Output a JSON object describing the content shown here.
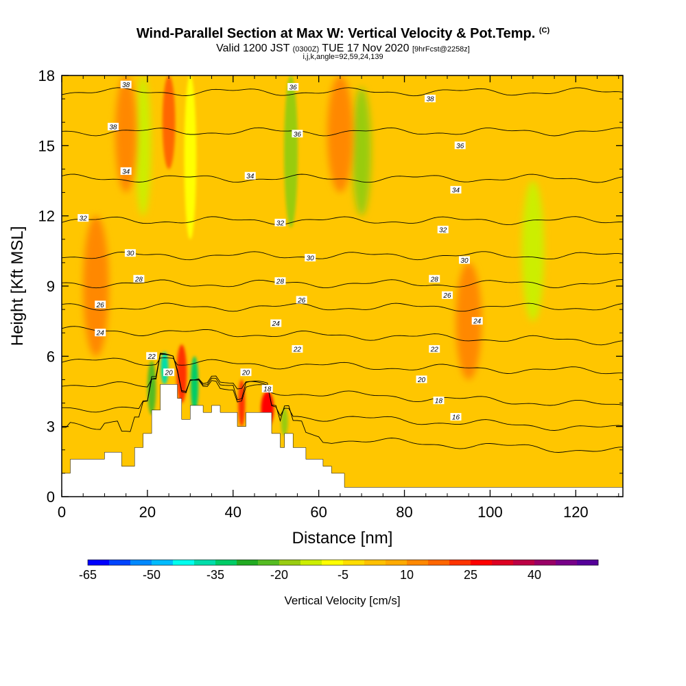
{
  "title": "Wind-Parallel Section at Max W: Vertical Velocity & Pot.Temp.",
  "title_mark": "(C)",
  "subtitle": {
    "valid": "Valid 1200 JST",
    "utc": "(0300Z)",
    "date": "TUE 17 Nov 2020",
    "forecast": "[9hrFcst@2258z]"
  },
  "indices": "i,j,k,angle=92,59,24,139",
  "chart_data": {
    "type": "heatmap",
    "xlabel": "Distance [nm]",
    "ylabel": "Height [Kft MSL]",
    "xlim": [
      0,
      131
    ],
    "ylim": [
      0,
      18
    ],
    "x_ticks": [
      "0",
      "20",
      "40",
      "60",
      "80",
      "100",
      "120"
    ],
    "y_ticks": [
      "0",
      "3",
      "6",
      "9",
      "12",
      "15",
      "18"
    ],
    "colorbar": {
      "label": "Vertical Velocity [cm/s]",
      "tick_labels": [
        "-65",
        "-50",
        "-35",
        "-20",
        "-5",
        "10",
        "25",
        "40"
      ],
      "colors": [
        "#0000ff",
        "#0044ff",
        "#0088ff",
        "#00bbff",
        "#00ffee",
        "#00ddaa",
        "#00cc66",
        "#22aa22",
        "#55bb22",
        "#99cc11",
        "#ccee00",
        "#ffff00",
        "#ffdd00",
        "#ffc000",
        "#ffaa00",
        "#ff8800",
        "#ff6600",
        "#ff3300",
        "#ff0000",
        "#dd0022",
        "#bb0044",
        "#990066",
        "#770088",
        "#550099"
      ]
    },
    "terrain": [
      [
        0,
        0
      ],
      [
        0,
        1
      ],
      [
        2,
        1
      ],
      [
        2,
        1.6
      ],
      [
        10,
        1.6
      ],
      [
        10,
        1.9
      ],
      [
        14,
        1.9
      ],
      [
        14,
        1.3
      ],
      [
        17,
        1.3
      ],
      [
        17,
        2.1
      ],
      [
        19,
        2.1
      ],
      [
        19,
        2.7
      ],
      [
        21,
        2.7
      ],
      [
        21,
        3.7
      ],
      [
        23,
        3.7
      ],
      [
        23,
        4.8
      ],
      [
        27,
        4.8
      ],
      [
        27,
        4.2
      ],
      [
        28,
        4.2
      ],
      [
        28,
        3.3
      ],
      [
        30,
        3.3
      ],
      [
        30,
        3.9
      ],
      [
        33,
        3.9
      ],
      [
        33,
        3.6
      ],
      [
        35,
        3.6
      ],
      [
        35,
        3.9
      ],
      [
        37,
        3.9
      ],
      [
        37,
        3.6
      ],
      [
        41,
        3.6
      ],
      [
        41,
        3
      ],
      [
        43,
        3
      ],
      [
        43,
        3.6
      ],
      [
        49,
        3.6
      ],
      [
        49,
        2.7
      ],
      [
        51,
        2.7
      ],
      [
        51,
        2.1
      ],
      [
        52,
        2.1
      ],
      [
        52,
        2.7
      ],
      [
        54,
        2.7
      ],
      [
        54,
        2.1
      ],
      [
        57,
        2.1
      ],
      [
        57,
        1.6
      ],
      [
        61,
        1.6
      ],
      [
        61,
        1.3
      ],
      [
        63,
        1.3
      ],
      [
        63,
        1
      ],
      [
        66,
        1
      ],
      [
        66,
        0.4
      ],
      [
        131,
        0.4
      ],
      [
        131,
        0
      ]
    ],
    "theta_contours": [
      {
        "label": "16",
        "y": 2.45
      },
      {
        "label": "18",
        "y": 3.4
      },
      {
        "label": "20",
        "y": 4.4
      },
      {
        "label": "22",
        "y": 5.6
      },
      {
        "label": "24",
        "y": 6.9
      },
      {
        "label": "26",
        "y": 8.1
      },
      {
        "label": "28",
        "y": 9.1
      },
      {
        "label": "30",
        "y": 10.3
      },
      {
        "label": "32",
        "y": 11.8
      },
      {
        "label": "34",
        "y": 13.6
      },
      {
        "label": "36",
        "y": 15.6
      },
      {
        "label": "38",
        "y": 17.3
      }
    ],
    "contour_labels": [
      {
        "label": "38",
        "x": 15,
        "y": 17.6
      },
      {
        "label": "36",
        "x": 54,
        "y": 17.5
      },
      {
        "label": "38",
        "x": 86,
        "y": 17.0
      },
      {
        "label": "38",
        "x": 12,
        "y": 15.8
      },
      {
        "label": "36",
        "x": 55,
        "y": 15.5
      },
      {
        "label": "36",
        "x": 93,
        "y": 15.0
      },
      {
        "label": "34",
        "x": 15,
        "y": 13.9
      },
      {
        "label": "34",
        "x": 44,
        "y": 13.7
      },
      {
        "label": "34",
        "x": 92,
        "y": 13.1
      },
      {
        "label": "32",
        "x": 5,
        "y": 11.9
      },
      {
        "label": "32",
        "x": 51,
        "y": 11.7
      },
      {
        "label": "32",
        "x": 89,
        "y": 11.4
      },
      {
        "label": "30",
        "x": 16,
        "y": 10.4
      },
      {
        "label": "30",
        "x": 58,
        "y": 10.2
      },
      {
        "label": "30",
        "x": 94,
        "y": 10.1
      },
      {
        "label": "28",
        "x": 18,
        "y": 9.3
      },
      {
        "label": "28",
        "x": 51,
        "y": 9.2
      },
      {
        "label": "28",
        "x": 87,
        "y": 9.3
      },
      {
        "label": "26",
        "x": 9,
        "y": 8.2
      },
      {
        "label": "26",
        "x": 56,
        "y": 8.4
      },
      {
        "label": "26",
        "x": 90,
        "y": 8.6
      },
      {
        "label": "24",
        "x": 9,
        "y": 7.0
      },
      {
        "label": "24",
        "x": 50,
        "y": 7.4
      },
      {
        "label": "24",
        "x": 97,
        "y": 7.5
      },
      {
        "label": "22",
        "x": 21,
        "y": 6.0
      },
      {
        "label": "22",
        "x": 55,
        "y": 6.3
      },
      {
        "label": "22",
        "x": 87,
        "y": 6.3
      },
      {
        "label": "20",
        "x": 25,
        "y": 5.3
      },
      {
        "label": "20",
        "x": 43,
        "y": 5.3
      },
      {
        "label": "20",
        "x": 84,
        "y": 5.0
      },
      {
        "label": "18",
        "x": 48,
        "y": 4.6
      },
      {
        "label": "18",
        "x": 88,
        "y": 4.1
      },
      {
        "label": "16",
        "x": 92,
        "y": 3.4
      }
    ],
    "velocity_features": [
      {
        "x": 19,
        "y0": 12,
        "y1": 18,
        "w": 1.8,
        "value": -15
      },
      {
        "x": 25,
        "y0": 14,
        "y1": 18,
        "w": 1.5,
        "value": 15
      },
      {
        "x": 30,
        "y0": 11,
        "y1": 18,
        "w": 1.4,
        "value": -10
      },
      {
        "x": 53.5,
        "y0": 11.5,
        "y1": 18,
        "w": 1.6,
        "value": -20
      },
      {
        "x": 70,
        "y0": 12,
        "y1": 17.5,
        "w": 2.2,
        "value": -17
      },
      {
        "x": 110,
        "y0": 7.5,
        "y1": 13.5,
        "w": 2.6,
        "value": -12
      },
      {
        "x": 15,
        "y0": 13,
        "y1": 18,
        "w": 2.5,
        "value": 12
      },
      {
        "x": 8,
        "y0": 6,
        "y1": 12,
        "w": 3,
        "value": 12
      },
      {
        "x": 95,
        "y0": 5,
        "y1": 10,
        "w": 3,
        "value": 14
      },
      {
        "x": 65,
        "y0": 13,
        "y1": 18,
        "w": 3,
        "value": 12
      },
      {
        "x": 48,
        "y0": 3,
        "y1": 4.5,
        "w": 1.5,
        "value": 25
      },
      {
        "x": 42,
        "y0": 3,
        "y1": 5,
        "w": 0.8,
        "value": 22
      },
      {
        "x": 21,
        "y0": 3.5,
        "y1": 5.8,
        "w": 1.0,
        "value": -25
      },
      {
        "x": 24,
        "y0": 4.8,
        "y1": 6.2,
        "w": 0.9,
        "value": -40
      },
      {
        "x": 31,
        "y0": 3.6,
        "y1": 6.0,
        "w": 0.9,
        "value": -35
      },
      {
        "x": 52,
        "y0": 2.6,
        "y1": 3.8,
        "w": 0.8,
        "value": -20
      },
      {
        "x": 28,
        "y0": 4.0,
        "y1": 6.5,
        "w": 1.2,
        "value": 22
      }
    ]
  }
}
